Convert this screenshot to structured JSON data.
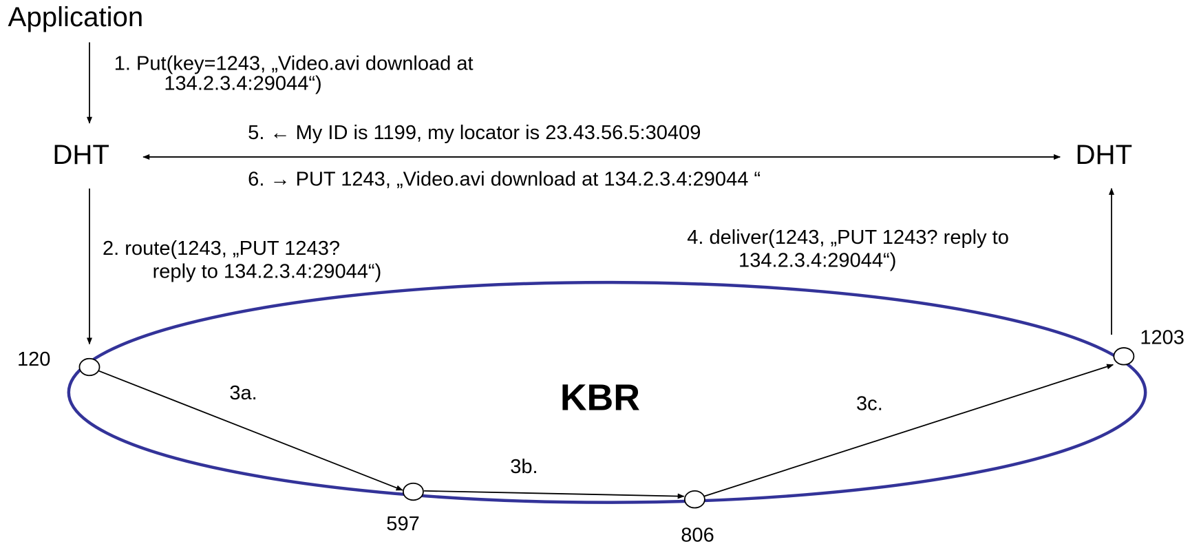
{
  "application": "Application",
  "steps": {
    "put": [
      "1.  Put(key=1243, „Video.avi download at",
      "134.2.3.4:29044“)"
    ],
    "route": [
      "2. route(1243, „PUT 1243?",
      "reply to 134.2.3.4:29044“)"
    ],
    "hop_a": "3a.",
    "hop_b": "3b.",
    "hop_c": "3c.",
    "deliver": [
      "4. deliver(1243, „PUT 1243? reply to",
      "134.2.3.4:29044“)"
    ],
    "reply": "5. ← My ID is 1199, my locator is 23.43.56.5:30409",
    "store": "6. → PUT 1243, „Video.avi download at 134.2.3.4:29044 “"
  },
  "dht_left": "DHT",
  "dht_right": "DHT",
  "ring": "KBR",
  "nodes": [
    {
      "label": "120"
    },
    {
      "label": "597"
    },
    {
      "label": "806"
    },
    {
      "label": "1203"
    }
  ]
}
